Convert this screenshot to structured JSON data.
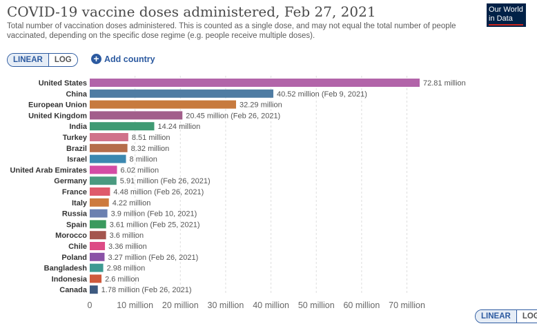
{
  "header": {
    "title": "COVID-19 vaccine doses administered, Feb 27, 2021",
    "subtitle": "Total number of vaccination doses administered. This is counted as a single dose, and may not equal the total number of people vaccinated, depending on the specific dose regime (e.g. people receive multiple doses).",
    "logo_line1": "Our World",
    "logo_line2": "in Data"
  },
  "controls": {
    "linear_label": "LINEAR",
    "log_label": "LOG",
    "add_country_label": "Add country",
    "active_scale": "linear"
  },
  "colors": {
    "accent": "#2c5aa0",
    "logo_bg": "#002147",
    "logo_bar": "#ce261e"
  },
  "chart_data": {
    "type": "bar",
    "orientation": "horizontal",
    "categories": [
      "United States",
      "China",
      "European Union",
      "United Kingdom",
      "India",
      "Turkey",
      "Brazil",
      "Israel",
      "United Arab Emirates",
      "Germany",
      "France",
      "Italy",
      "Russia",
      "Spain",
      "Morocco",
      "Chile",
      "Poland",
      "Bangladesh",
      "Indonesia",
      "Canada"
    ],
    "values": [
      72.81,
      40.52,
      32.29,
      20.45,
      14.24,
      8.51,
      8.32,
      8,
      6.02,
      5.91,
      4.48,
      4.22,
      3.9,
      3.61,
      3.6,
      3.36,
      3.27,
      2.98,
      2.6,
      1.78
    ],
    "value_labels": [
      "72.81 million",
      "40.52 million (Feb 9, 2021)",
      "32.29 million",
      "20.45 million (Feb 26, 2021)",
      "14.24 million",
      "8.51 million",
      "8.32 million",
      "8 million",
      "6.02 million",
      "5.91 million (Feb 26, 2021)",
      "4.48 million (Feb 26, 2021)",
      "4.22 million",
      "3.9 million (Feb 10, 2021)",
      "3.61 million (Feb 25, 2021)",
      "3.6 million",
      "3.36 million",
      "3.27 million (Feb 26, 2021)",
      "2.98 million",
      "2.6 million",
      "1.78 million (Feb 26, 2021)"
    ],
    "colors": [
      "#b264a9",
      "#4f7ca3",
      "#c77a3e",
      "#a25e8b",
      "#3f9a73",
      "#d0728a",
      "#b56d4a",
      "#3b88b0",
      "#d44ca5",
      "#4a9a80",
      "#df5a6b",
      "#cd7a3e",
      "#6b80b0",
      "#3a9a5e",
      "#a4554e",
      "#dd4c86",
      "#8a52a6",
      "#3d9a92",
      "#cf5a3c",
      "#3d5a80"
    ],
    "x_ticks": [
      0,
      10,
      20,
      30,
      40,
      50,
      60,
      70
    ],
    "x_tick_labels": [
      "0",
      "10 million",
      "20 million",
      "30 million",
      "40 million",
      "50 million",
      "60 million",
      "70 million"
    ],
    "xlim": [
      0,
      72.81
    ],
    "unit": "million",
    "grid": "vertical dashed",
    "xlabel": "",
    "ylabel": ""
  }
}
